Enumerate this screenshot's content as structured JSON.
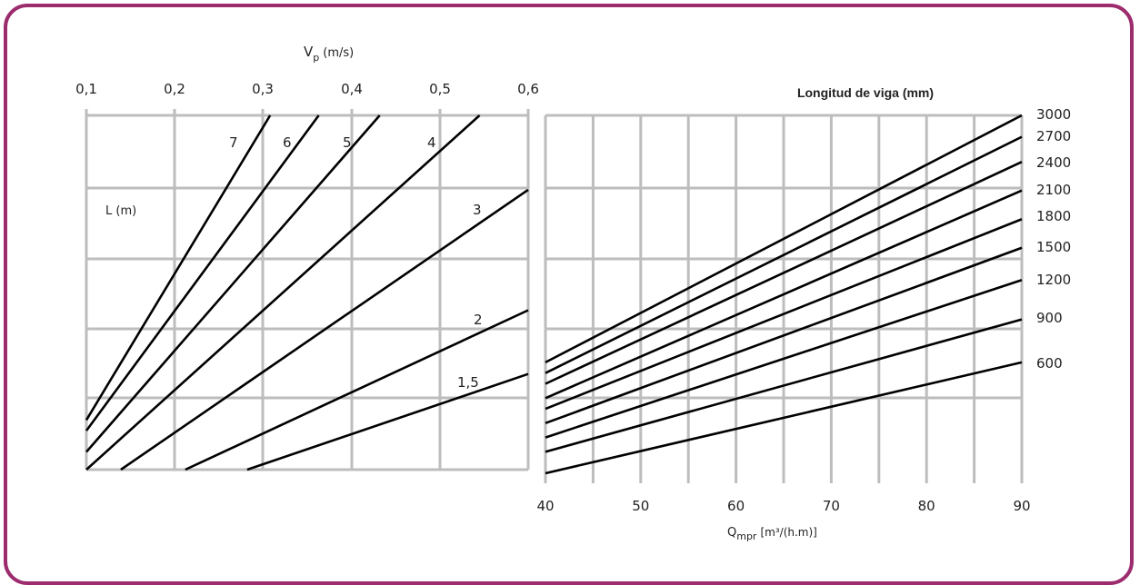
{
  "colors": {
    "frame": "#9c2c6e",
    "grid": "#bdbdbd",
    "line": "#000000",
    "background": "#ffffff"
  },
  "chart_data": [
    {
      "type": "line",
      "title": "",
      "xlabel_main": "V",
      "xlabel_sub": "p",
      "xlabel_unit": "(m/s)",
      "ylabel": "L (m)",
      "xaxis_position": "top",
      "x_ticks": [
        "0,1",
        "0,2",
        "0,3",
        "0,4",
        "0,5",
        "0,6"
      ],
      "xlim": [
        0.1,
        0.6
      ],
      "grid": true,
      "series": [
        {
          "name": "7",
          "points": [
            [
              0.1,
              0.14
            ],
            [
              0.308,
              1.0
            ]
          ]
        },
        {
          "name": "6",
          "points": [
            [
              0.1,
              0.11
            ],
            [
              0.363,
              1.0
            ]
          ]
        },
        {
          "name": "5",
          "points": [
            [
              0.1,
              0.05
            ],
            [
              0.432,
              1.0
            ]
          ]
        },
        {
          "name": "4",
          "points": [
            [
              0.1,
              0.0
            ],
            [
              0.545,
              1.0
            ]
          ]
        },
        {
          "name": "3",
          "points": [
            [
              0.139,
              0.0
            ],
            [
              0.6,
              0.79
            ]
          ]
        },
        {
          "name": "2",
          "points": [
            [
              0.212,
              0.0
            ],
            [
              0.6,
              0.45
            ]
          ]
        },
        {
          "name": "1,5",
          "points": [
            [
              0.282,
              0.0
            ],
            [
              0.6,
              0.27
            ]
          ]
        }
      ]
    },
    {
      "type": "line",
      "title": "Longitud de viga (mm)",
      "xlabel_main": "Q",
      "xlabel_sub": "mpr",
      "xlabel_unit": "[m³/(h.m)]",
      "x_ticks": [
        "40",
        "50",
        "60",
        "70",
        "80",
        "90"
      ],
      "xlim": [
        40,
        90
      ],
      "grid": true,
      "series": [
        {
          "name": "3000",
          "points": [
            [
              40,
              0.31
            ],
            [
              90,
              1.0
            ]
          ]
        },
        {
          "name": "2700",
          "points": [
            [
              40,
              0.28
            ],
            [
              90,
              0.94
            ]
          ]
        },
        {
          "name": "2400",
          "points": [
            [
              40,
              0.25
            ],
            [
              90,
              0.87
            ]
          ]
        },
        {
          "name": "2100",
          "points": [
            [
              40,
              0.21
            ],
            [
              90,
              0.79
            ]
          ]
        },
        {
          "name": "1800",
          "points": [
            [
              40,
              0.18
            ],
            [
              90,
              0.71
            ]
          ]
        },
        {
          "name": "1500",
          "points": [
            [
              40,
              0.14
            ],
            [
              90,
              0.63
            ]
          ]
        },
        {
          "name": "1200",
          "points": [
            [
              40,
              0.1
            ],
            [
              90,
              0.54
            ]
          ]
        },
        {
          "name": "900",
          "points": [
            [
              40,
              0.06
            ],
            [
              90,
              0.43
            ]
          ]
        },
        {
          "name": "600",
          "points": [
            [
              40,
              0.0
            ],
            [
              90,
              0.31
            ]
          ]
        }
      ]
    }
  ]
}
